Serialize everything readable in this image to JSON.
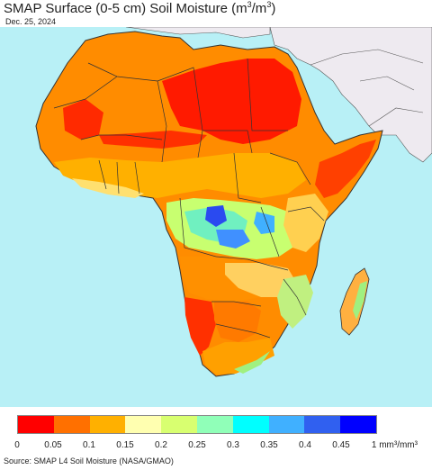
{
  "header": {
    "title_main": "SMAP Surface (0-5 cm) Soil Moisture (m",
    "title_sup1": "3",
    "title_mid": "/m",
    "title_sup2": "3",
    "title_end": ")",
    "date": "Dec. 25, 2024"
  },
  "legend": {
    "colors": [
      "#ff0000",
      "#ff7000",
      "#ffb000",
      "#ffffb0",
      "#d8ff70",
      "#90ffb8",
      "#00ffff",
      "#40b0ff",
      "#3060f0",
      "#0000ff"
    ],
    "labels": [
      "0",
      "0.05",
      "0.1",
      "0.15",
      "0.2",
      "0.25",
      "0.3",
      "0.35",
      "0.4",
      "0.45",
      "1 mm³/mm³"
    ]
  },
  "footer": {
    "source": "Source: SMAP L4 Soil Moisture (NASA/GMAO)"
  },
  "map_colors": {
    "ocean": "#b8f0f6",
    "other_land": "#eeeaf0",
    "border": "#333333"
  }
}
